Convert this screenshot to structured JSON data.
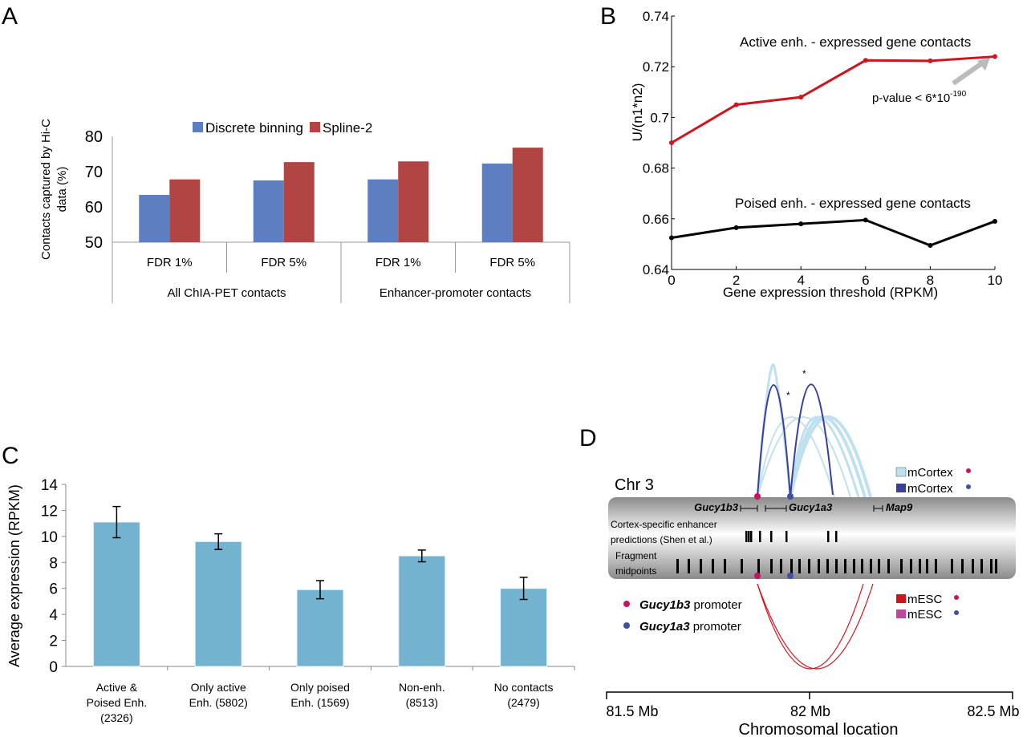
{
  "panel_labels": [
    "A",
    "B",
    "C",
    "D"
  ],
  "chart_data": [
    {
      "panel": "A",
      "type": "bar",
      "title": "",
      "ylabel": "Contacts captured by Hi-C data (%)",
      "ylabel_lines": [
        "Contacts captured by Hi-C",
        "data (%)"
      ],
      "ylim": [
        50,
        80
      ],
      "yticks": [
        "50",
        "60",
        "70",
        "80"
      ],
      "categories": [
        "FDR 1%",
        "FDR 5%",
        "FDR 1%",
        "FDR 5%"
      ],
      "groups": [
        "All ChIA-PET contacts",
        "Enhancer-promoter contacts"
      ],
      "legend_position": "top",
      "series": [
        {
          "name": "Discrete binning",
          "color": "#5b7fc1",
          "values": [
            63.4,
            67.5,
            67.8,
            72.3
          ]
        },
        {
          "name": "Spline-2",
          "color": "#b04543",
          "values": [
            67.8,
            72.7,
            72.9,
            76.8
          ]
        }
      ]
    },
    {
      "panel": "B",
      "type": "line",
      "xlabel": "Gene expression threshold (RPKM)",
      "ylabel": "U/(n1*n2)",
      "xlim": [
        0,
        10
      ],
      "ylim": [
        0.64,
        0.74
      ],
      "xticks": [
        "0",
        "2",
        "4",
        "6",
        "8",
        "10"
      ],
      "yticks": [
        "0.64",
        "0.66",
        "0.68",
        "0.7",
        "0.72",
        "0.74"
      ],
      "x": [
        0,
        2,
        4,
        6,
        8,
        10
      ],
      "series": [
        {
          "name": "Active enh. - expressed gene contacts",
          "color": "#d0141e",
          "values": [
            0.69,
            0.705,
            0.708,
            0.7225,
            0.7223,
            0.724
          ]
        },
        {
          "name": "Poised enh. - expressed gene contacts",
          "color": "#000000",
          "values": [
            0.6525,
            0.6565,
            0.658,
            0.6595,
            0.6495,
            0.659
          ]
        }
      ],
      "annotation": {
        "text": "p-value < 6*10",
        "superscript": "-190"
      }
    },
    {
      "panel": "C",
      "type": "bar",
      "ylabel": "Average expression (RPKM)",
      "ylim": [
        0,
        14
      ],
      "yticks": [
        "0",
        "2",
        "4",
        "6",
        "8",
        "10",
        "12",
        "14"
      ],
      "categories": [
        [
          "Active &",
          "Poised Enh.",
          "(2326)"
        ],
        [
          "Only active",
          "Enh. (5802)"
        ],
        [
          "Only poised",
          "Enh. (1569)"
        ],
        [
          "Non-enh.",
          "(8513)"
        ],
        [
          "No contacts",
          "(2479)"
        ]
      ],
      "color": "#74b3d0",
      "values": [
        11.1,
        9.6,
        5.9,
        8.5,
        6.0
      ],
      "errors": [
        1.2,
        0.6,
        0.7,
        0.45,
        0.85
      ]
    }
  ],
  "panel_d": {
    "chromosome": "Chr 3",
    "genes": [
      "Gucy1b3",
      "Gucy1a3",
      "Map9"
    ],
    "track1": [
      "Cortex-specific enhancer",
      "predictions (Shen et al.)"
    ],
    "track2": [
      "Fragment",
      "midpoints"
    ],
    "legend_top": [
      {
        "label": "mCortex",
        "color": "#bfe0ee"
      },
      {
        "label": "mCortex",
        "color": "#3b3f9a"
      }
    ],
    "legend_bottom": [
      {
        "label": "mESC",
        "color": "#d0141e"
      },
      {
        "label": "mESC",
        "color": "#c0479a"
      }
    ],
    "promoters": [
      {
        "gene": "Gucy1b3",
        "suffix": " promoter",
        "color": "#c2185b"
      },
      {
        "gene": "Gucy1a3",
        "suffix": " promoter",
        "color": "#3f51a5"
      }
    ],
    "axis_ticks": [
      "81.5 Mb",
      "82 Mb",
      "82.5 Mb"
    ],
    "axis_label": "Chromosomal location"
  }
}
